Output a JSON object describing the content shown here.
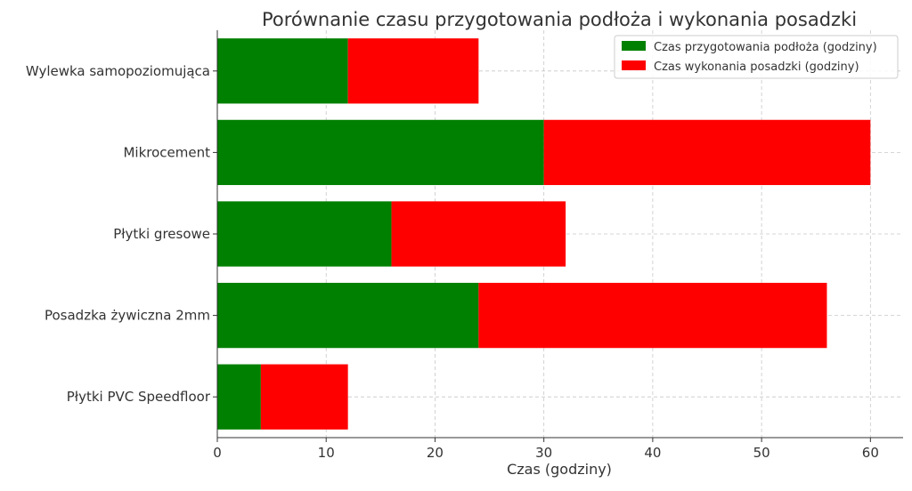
{
  "chart_data": {
    "type": "bar",
    "orientation": "horizontal",
    "stacked": true,
    "title": "Porównanie czasu przygotowania podłoża i wykonania posadzki",
    "xlabel": "Czas (godziny)",
    "ylabel": "",
    "xlim": [
      0,
      63
    ],
    "xticks": [
      0,
      10,
      20,
      30,
      40,
      50,
      60
    ],
    "categories": [
      "Wylewka samopoziomująca",
      "Mikrocement",
      "Płytki gresowe",
      "Posadzka żywiczna 2mm",
      "Płytki PVC Speedfloor"
    ],
    "series": [
      {
        "name": "Czas przygotowania podłoża (godziny)",
        "color": "#008000",
        "values": [
          12,
          30,
          16,
          24,
          4
        ]
      },
      {
        "name": "Czas wykonania posadzki (godziny)",
        "color": "#ff0000",
        "values": [
          12,
          30,
          16,
          32,
          8
        ]
      }
    ],
    "grid": true,
    "legend_position": "top-right"
  }
}
